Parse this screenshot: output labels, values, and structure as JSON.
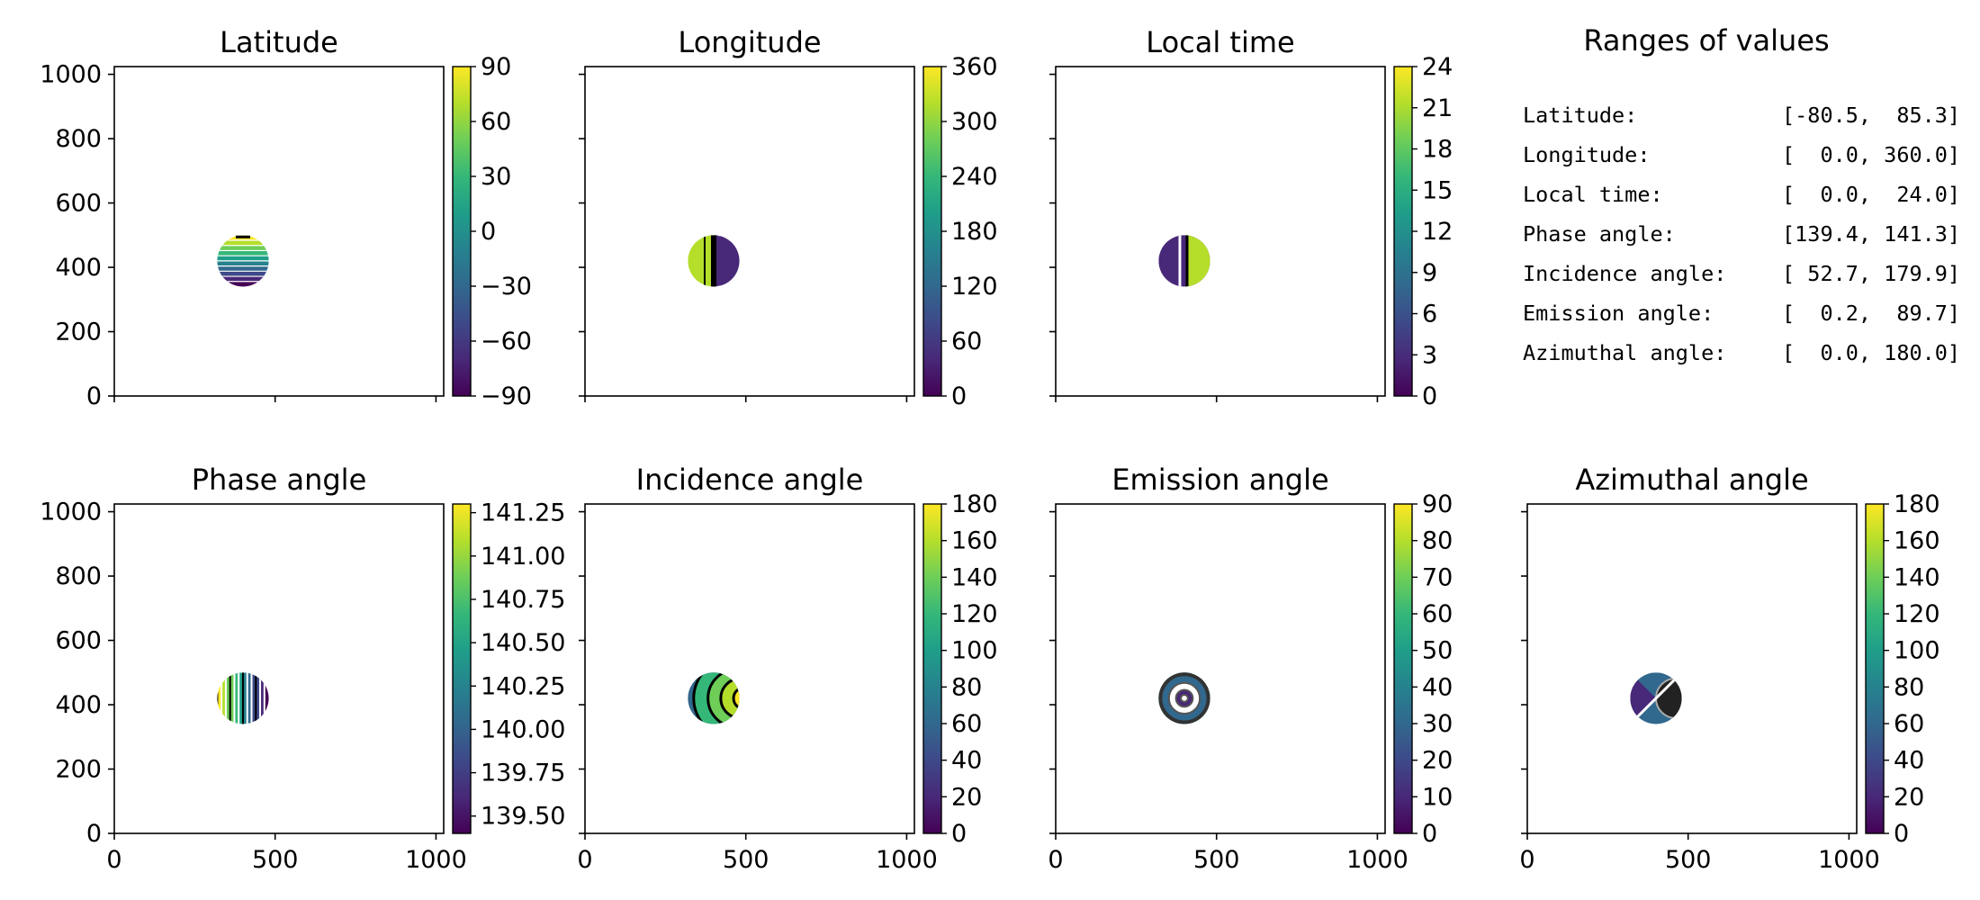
{
  "figure": {
    "panels": [
      {
        "id": "lat",
        "title": "Latitude",
        "colorbar_ticks": [
          "90",
          "60",
          "30",
          "0",
          "−30",
          "−60",
          "−90"
        ],
        "cbar_range": [
          -90,
          90
        ],
        "cbar_values": [
          90,
          60,
          30,
          0,
          -30,
          -60,
          -90
        ]
      },
      {
        "id": "lon",
        "title": "Longitude",
        "colorbar_ticks": [
          "360",
          "300",
          "240",
          "180",
          "120",
          "60",
          "0"
        ],
        "cbar_range": [
          0,
          360
        ],
        "cbar_values": [
          360,
          300,
          240,
          180,
          120,
          60,
          0
        ]
      },
      {
        "id": "lt",
        "title": "Local time",
        "colorbar_ticks": [
          "24",
          "21",
          "18",
          "15",
          "12",
          "9",
          "6",
          "3",
          "0"
        ],
        "cbar_range": [
          0,
          24
        ],
        "cbar_values": [
          24,
          21,
          18,
          15,
          12,
          9,
          6,
          3,
          0
        ]
      },
      {
        "id": "ph",
        "title": "Phase angle",
        "colorbar_ticks": [
          "141.25",
          "141.00",
          "140.75",
          "140.50",
          "140.25",
          "140.00",
          "139.75",
          "139.50"
        ],
        "cbar_range": [
          139.4,
          141.3
        ],
        "cbar_values": [
          141.25,
          141.0,
          140.75,
          140.5,
          140.25,
          140.0,
          139.75,
          139.5
        ]
      },
      {
        "id": "inc",
        "title": "Incidence angle",
        "colorbar_ticks": [
          "180",
          "160",
          "140",
          "120",
          "100",
          "80",
          "60",
          "40",
          "20",
          "0"
        ],
        "cbar_range": [
          0,
          180
        ],
        "cbar_values": [
          180,
          160,
          140,
          120,
          100,
          80,
          60,
          40,
          20,
          0
        ]
      },
      {
        "id": "em",
        "title": "Emission angle",
        "colorbar_ticks": [
          "90",
          "80",
          "70",
          "60",
          "50",
          "40",
          "30",
          "20",
          "10",
          "0"
        ],
        "cbar_range": [
          0,
          90
        ],
        "cbar_values": [
          90,
          80,
          70,
          60,
          50,
          40,
          30,
          20,
          10,
          0
        ]
      },
      {
        "id": "az",
        "title": "Azimuthal angle",
        "colorbar_ticks": [
          "180",
          "160",
          "140",
          "120",
          "100",
          "80",
          "60",
          "40",
          "20",
          "0"
        ],
        "cbar_range": [
          0,
          180
        ],
        "cbar_values": [
          180,
          160,
          140,
          120,
          100,
          80,
          60,
          40,
          20,
          0
        ]
      }
    ],
    "y_ticks": [
      "1000",
      "800",
      "600",
      "400",
      "200",
      "0"
    ],
    "x_ticks": [
      "0",
      "500",
      "1000"
    ],
    "ranges": {
      "title": "Ranges of values",
      "rows": [
        {
          "label": "Latitude:",
          "value": "[-80.5,  85.3]"
        },
        {
          "label": "Longitude:",
          "value": "[  0.0, 360.0]"
        },
        {
          "label": "Local time:",
          "value": "[  0.0,  24.0]"
        },
        {
          "label": "Phase angle:",
          "value": "[139.4, 141.3]"
        },
        {
          "label": "Incidence angle:",
          "value": "[ 52.7, 179.9]"
        },
        {
          "label": "Emission angle:",
          "value": "[  0.2,  89.7]"
        },
        {
          "label": "Azimuthal angle:",
          "value": "[  0.0, 180.0]"
        }
      ]
    }
  },
  "chart_data": [
    {
      "type": "heatmap",
      "title": "Latitude",
      "xlim": [
        0,
        1024
      ],
      "ylim": [
        0,
        1024
      ],
      "colorbar_range": [
        -90,
        90
      ],
      "value_range": [
        -80.5,
        85.3
      ],
      "disc_center": [
        400,
        420
      ],
      "disc_radius": 80
    },
    {
      "type": "heatmap",
      "title": "Longitude",
      "xlim": [
        0,
        1024
      ],
      "ylim": [
        0,
        1024
      ],
      "colorbar_range": [
        0,
        360
      ],
      "value_range": [
        0.0,
        360.0
      ],
      "disc_center": [
        400,
        420
      ],
      "disc_radius": 80
    },
    {
      "type": "heatmap",
      "title": "Local time",
      "xlim": [
        0,
        1024
      ],
      "ylim": [
        0,
        1024
      ],
      "colorbar_range": [
        0,
        24
      ],
      "value_range": [
        0.0,
        24.0
      ],
      "disc_center": [
        400,
        420
      ],
      "disc_radius": 80
    },
    {
      "type": "heatmap",
      "title": "Phase angle",
      "xlim": [
        0,
        1024
      ],
      "ylim": [
        0,
        1024
      ],
      "colorbar_range": [
        139.4,
        141.3
      ],
      "value_range": [
        139.4,
        141.3
      ],
      "disc_center": [
        400,
        420
      ],
      "disc_radius": 80
    },
    {
      "type": "heatmap",
      "title": "Incidence angle",
      "xlim": [
        0,
        1024
      ],
      "ylim": [
        0,
        1024
      ],
      "colorbar_range": [
        0,
        180
      ],
      "value_range": [
        52.7,
        179.9
      ],
      "disc_center": [
        400,
        420
      ],
      "disc_radius": 80
    },
    {
      "type": "heatmap",
      "title": "Emission angle",
      "xlim": [
        0,
        1024
      ],
      "ylim": [
        0,
        1024
      ],
      "colorbar_range": [
        0,
        90
      ],
      "value_range": [
        0.2,
        89.7
      ],
      "disc_center": [
        400,
        420
      ],
      "disc_radius": 80
    },
    {
      "type": "heatmap",
      "title": "Azimuthal angle",
      "xlim": [
        0,
        1024
      ],
      "ylim": [
        0,
        1024
      ],
      "colorbar_range": [
        0,
        180
      ],
      "value_range": [
        0.0,
        180.0
      ],
      "disc_center": [
        400,
        420
      ],
      "disc_radius": 80
    }
  ],
  "colors": {
    "viridis": [
      "#440154",
      "#482878",
      "#3e4989",
      "#31688e",
      "#26828e",
      "#1f9e89",
      "#35b779",
      "#6ece58",
      "#b5de2b",
      "#fde725"
    ]
  }
}
